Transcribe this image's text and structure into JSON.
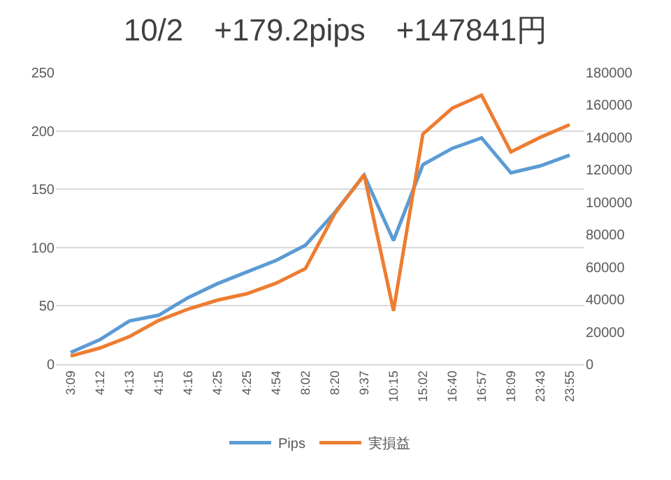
{
  "chart_data": {
    "type": "line",
    "title": "10/2　+179.2pips　+147841円",
    "categories": [
      "3:09",
      "4:12",
      "4:13",
      "4:15",
      "4:16",
      "4:25",
      "4:25",
      "4:54",
      "8:02",
      "8:20",
      "9:37",
      "10:15",
      "15:02",
      "16:40",
      "16:57",
      "18:09",
      "23:43",
      "23:55"
    ],
    "series": [
      {
        "name": "Pips",
        "color": "#5b9bd5",
        "values": [
          10,
          21,
          37,
          42,
          57,
          69,
          79,
          89,
          102,
          130,
          162,
          106,
          171,
          185,
          194,
          164,
          170,
          179.2
        ]
      },
      {
        "name": "実損益",
        "color": "#ed7d31",
        "axis": "y2",
        "values": [
          5000,
          10000,
          17000,
          27000,
          34000,
          39500,
          43500,
          50000,
          59000,
          93000,
          117000,
          33000,
          142000,
          158000,
          166000,
          131000,
          140000,
          147841
        ]
      }
    ],
    "ylim": [
      0,
      250
    ],
    "yticks": [
      0,
      50,
      100,
      150,
      200,
      250
    ],
    "y2lim": [
      0,
      180000
    ],
    "y2ticks": [
      0,
      20000,
      40000,
      60000,
      80000,
      100000,
      120000,
      140000,
      160000,
      180000
    ],
    "grid": "y",
    "legend": "bottom",
    "marker": "none",
    "line_style": "solid"
  }
}
